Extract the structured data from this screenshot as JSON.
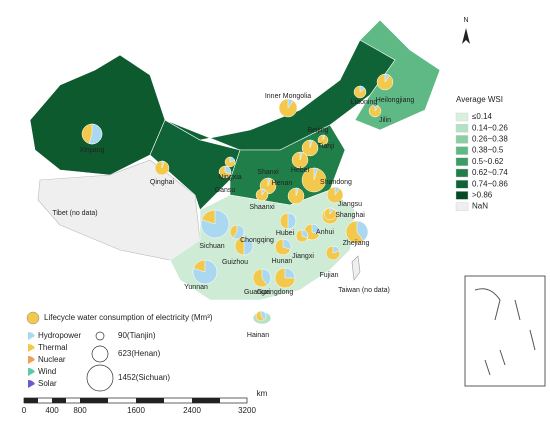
{
  "north": "N",
  "wsi_legend": {
    "title": "Average WSI",
    "items": [
      {
        "label": "≤0.14",
        "color": "#d9f0de"
      },
      {
        "label": "0.14~0.26",
        "color": "#b3e2c2"
      },
      {
        "label": "0.26~0.38",
        "color": "#8acfa2"
      },
      {
        "label": "0.38~0.5",
        "color": "#5fb984"
      },
      {
        "label": "0.5~0.62",
        "color": "#3b9c64"
      },
      {
        "label": "0.62~0.74",
        "color": "#207e48"
      },
      {
        "label": "0.74~0.86",
        "color": "#106336"
      },
      {
        "label": ">0.86",
        "color": "#064a25"
      },
      {
        "label": "NaN",
        "color": "#efefef"
      }
    ]
  },
  "provinces": [
    "Xinjiang",
    "Tibet (no data)",
    "Qinghai",
    "Gansu",
    "Ningxia",
    "Inner Mongolia",
    "Heilongjiang",
    "Jilin",
    "Liaoning",
    "Beijing",
    "Tianji",
    "Hebei",
    "Shanxi",
    "Shandong",
    "Henan",
    "Shaanxi",
    "Jiangsu",
    "Shanghai",
    "Anhui",
    "Zhejiang",
    "Hubei",
    "Sichuan",
    "Chongqing",
    "Hunan",
    "Jiangxi",
    "Fujian",
    "Guizhou",
    "Yunnan",
    "Guangxi",
    "Guangdong",
    "Taiwan (no data)",
    "Hainan"
  ],
  "water_legend": {
    "title": "Lifecycle water consumption  of electricity (Mm³)",
    "sources": [
      {
        "label": "Hydropower",
        "color": "#a9d8f0"
      },
      {
        "label": "Thermal",
        "color": "#f2c94c"
      },
      {
        "label": "Nuclear",
        "color": "#f0a05a"
      },
      {
        "label": "Wind",
        "color": "#5cc9a8"
      },
      {
        "label": "Solar",
        "color": "#6a5acd"
      }
    ],
    "sizes": [
      "90(Tianjin)",
      "623(Henan)",
      "1452(Sichuan)"
    ]
  },
  "scale_bar": {
    "labels": [
      "0",
      "400",
      "800",
      "1600",
      "2400",
      "3200"
    ],
    "unit": "km"
  }
}
